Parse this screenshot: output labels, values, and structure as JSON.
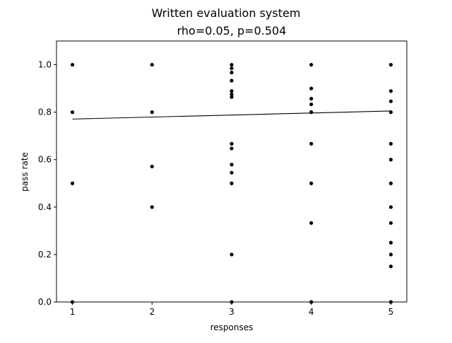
{
  "chart_data": {
    "type": "scatter",
    "title": "Written evaluation system",
    "subtitle": "rho=0.05, p=0.504",
    "xlabel": "responses",
    "ylabel": "pass rate",
    "xlim": [
      0.8,
      5.2
    ],
    "ylim": [
      0.0,
      1.1
    ],
    "xticks": [
      1,
      2,
      3,
      4,
      5
    ],
    "yticks": [
      0.0,
      0.2,
      0.4,
      0.6,
      0.8,
      1.0
    ],
    "xtick_labels": [
      "1",
      "2",
      "3",
      "4",
      "5"
    ],
    "ytick_labels": [
      "0.0",
      "0.2",
      "0.4",
      "0.6",
      "0.8",
      "1.0"
    ],
    "grid": false,
    "points": [
      {
        "x": 1,
        "y": 1.0
      },
      {
        "x": 1,
        "y": 0.8
      },
      {
        "x": 1,
        "y": 0.5
      },
      {
        "x": 1,
        "y": 0.0
      },
      {
        "x": 2,
        "y": 1.0
      },
      {
        "x": 2,
        "y": 0.8
      },
      {
        "x": 2,
        "y": 0.571
      },
      {
        "x": 2,
        "y": 0.4
      },
      {
        "x": 3,
        "y": 1.0
      },
      {
        "x": 3,
        "y": 0.985
      },
      {
        "x": 3,
        "y": 0.967
      },
      {
        "x": 3,
        "y": 0.933
      },
      {
        "x": 3,
        "y": 0.889
      },
      {
        "x": 3,
        "y": 0.875
      },
      {
        "x": 3,
        "y": 0.864
      },
      {
        "x": 3,
        "y": 0.667
      },
      {
        "x": 3,
        "y": 0.647
      },
      {
        "x": 3,
        "y": 0.579
      },
      {
        "x": 3,
        "y": 0.545
      },
      {
        "x": 3,
        "y": 0.5
      },
      {
        "x": 3,
        "y": 0.2
      },
      {
        "x": 3,
        "y": 0.0
      },
      {
        "x": 4,
        "y": 1.0
      },
      {
        "x": 4,
        "y": 0.9
      },
      {
        "x": 4,
        "y": 0.857
      },
      {
        "x": 4,
        "y": 0.833
      },
      {
        "x": 4,
        "y": 0.8
      },
      {
        "x": 4,
        "y": 0.667
      },
      {
        "x": 4,
        "y": 0.5
      },
      {
        "x": 4,
        "y": 0.333
      },
      {
        "x": 4,
        "y": 0.0
      },
      {
        "x": 5,
        "y": 1.0
      },
      {
        "x": 5,
        "y": 0.889
      },
      {
        "x": 5,
        "y": 0.846
      },
      {
        "x": 5,
        "y": 0.8
      },
      {
        "x": 5,
        "y": 0.667
      },
      {
        "x": 5,
        "y": 0.6
      },
      {
        "x": 5,
        "y": 0.5
      },
      {
        "x": 5,
        "y": 0.4
      },
      {
        "x": 5,
        "y": 0.333
      },
      {
        "x": 5,
        "y": 0.25
      },
      {
        "x": 5,
        "y": 0.2
      },
      {
        "x": 5,
        "y": 0.15
      },
      {
        "x": 5,
        "y": 0.0
      }
    ],
    "fit_line": {
      "x": [
        1,
        5
      ],
      "y": [
        0.771,
        0.805
      ]
    },
    "marker_color": "#000000",
    "line_color": "#000000"
  }
}
